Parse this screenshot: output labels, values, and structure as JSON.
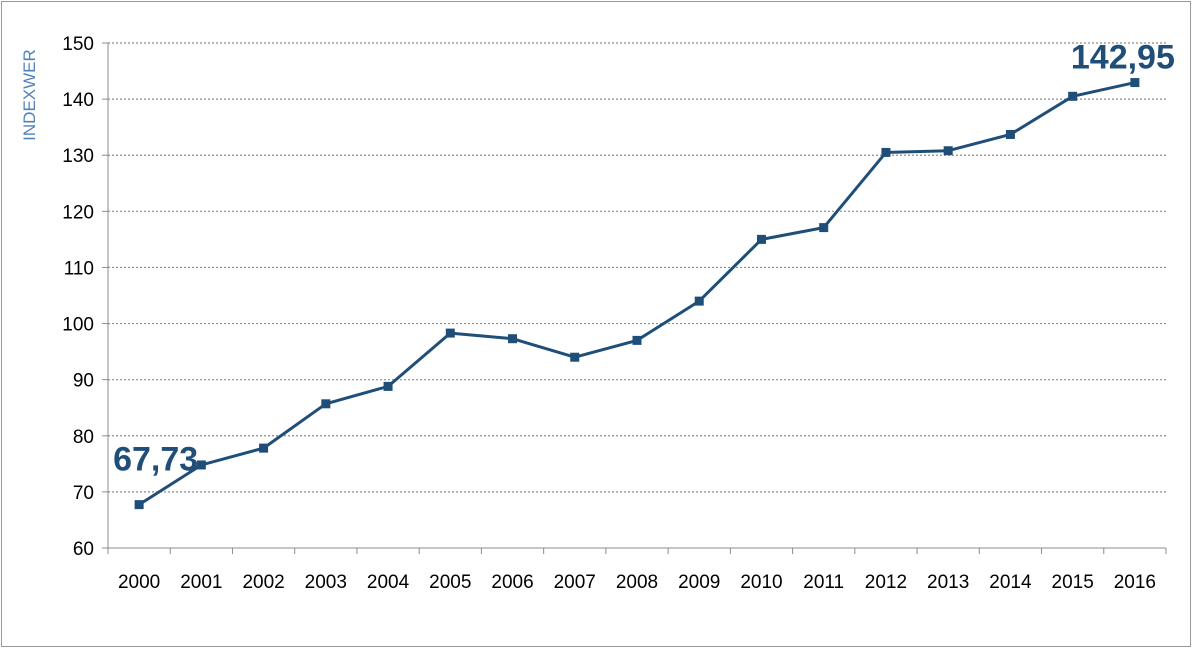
{
  "chart_data": {
    "type": "line",
    "ylabel": "INDEXWER",
    "xlabel": "",
    "ylim": [
      60,
      150
    ],
    "yticks": [
      60,
      70,
      80,
      90,
      100,
      110,
      120,
      130,
      140,
      150
    ],
    "grid": true,
    "legend": "none",
    "categories": [
      "2000",
      "2001",
      "2002",
      "2003",
      "2004",
      "2005",
      "2006",
      "2007",
      "2008",
      "2009",
      "2010",
      "2011",
      "2012",
      "2013",
      "2014",
      "2015",
      "2016"
    ],
    "series": [
      {
        "values": [
          67.73,
          74.8,
          77.8,
          85.7,
          88.8,
          98.3,
          97.3,
          94.0,
          97.0,
          104.0,
          115.0,
          117.1,
          130.5,
          130.8,
          133.7,
          140.5,
          142.95
        ],
        "color": "#1f4e79"
      }
    ],
    "data_labels": [
      {
        "index": 0,
        "text": "67,73"
      },
      {
        "index": 16,
        "text": "142,95"
      }
    ]
  }
}
